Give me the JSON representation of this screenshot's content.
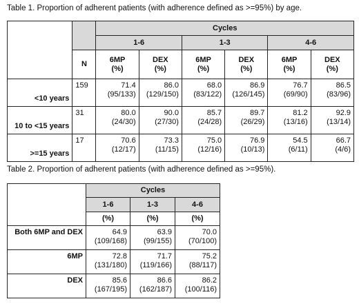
{
  "table1": {
    "caption": "Table 1. Proportion of adherent patients (with adherence defined as >=95%) by age.",
    "cycles_label": "Cycles",
    "groups": [
      "1-6",
      "1-3",
      "4-6"
    ],
    "n_label": "N",
    "col_6mp": "6MP",
    "col_dex": "DEX",
    "pct": "(%)",
    "rows": [
      {
        "label": "<10 years",
        "n": "159",
        "cells": [
          [
            "71.4",
            "(95/133)"
          ],
          [
            "86.0",
            "(129/150)"
          ],
          [
            "68.0",
            "(83/122)"
          ],
          [
            "86.9",
            "(126/145)"
          ],
          [
            "76.7",
            "(69/90)"
          ],
          [
            "86.5",
            "(83/96)"
          ]
        ]
      },
      {
        "label": "10 to <15 years",
        "n": "31",
        "cells": [
          [
            "80.0",
            "(24/30)"
          ],
          [
            "90.0",
            "(27/30)"
          ],
          [
            "85.7",
            "(24/28)"
          ],
          [
            "89.7",
            "(26/29)"
          ],
          [
            "81.2",
            "(13/16)"
          ],
          [
            "92.9",
            "(13/14)"
          ]
        ]
      },
      {
        "label": ">=15 years",
        "n": "17",
        "cells": [
          [
            "70.6",
            "(12/17)"
          ],
          [
            "73.3",
            "(11/15)"
          ],
          [
            "75.0",
            "(12/16)"
          ],
          [
            "76.9",
            "(10/13)"
          ],
          [
            "54.5",
            "(6/11)"
          ],
          [
            "66.7",
            "(4/6)"
          ]
        ]
      }
    ]
  },
  "table2": {
    "caption": "Table 2. Proportion of adherent patients (with adherence defined as >=95%).",
    "cycles_label": "Cycles",
    "groups": [
      "1-6",
      "1-3",
      "4-6"
    ],
    "pct": "(%)",
    "rows": [
      {
        "label": "Both 6MP and DEX",
        "cells": [
          [
            "64.9",
            "(109/168)"
          ],
          [
            "63.9",
            "(99/155)"
          ],
          [
            "70.0",
            "(70/100)"
          ]
        ]
      },
      {
        "label": "6MP",
        "cells": [
          [
            "72.8",
            "(131/180)"
          ],
          [
            "71.7",
            "(119/166)"
          ],
          [
            "75.2",
            "(88/117)"
          ]
        ]
      },
      {
        "label": "DEX",
        "cells": [
          [
            "85.6",
            "(167/195)"
          ],
          [
            "86.6",
            "(162/187)"
          ],
          [
            "86.2",
            "(100/116)"
          ]
        ]
      }
    ]
  }
}
